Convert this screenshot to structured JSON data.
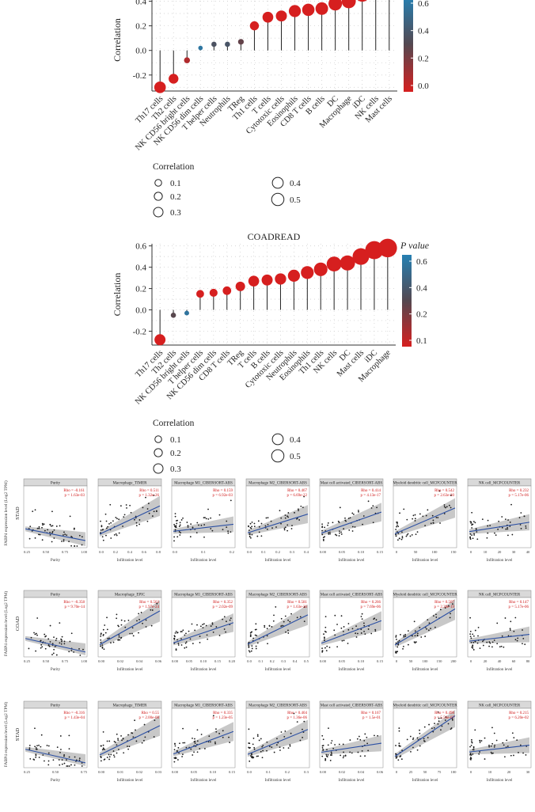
{
  "chart_data": [
    {
      "type": "scatter",
      "subtype": "lollipop",
      "title": "",
      "ylabel": "Correlation",
      "ylim": [
        -0.33,
        0.5
      ],
      "yticks": [
        -0.2,
        0.0,
        0.2,
        0.4
      ],
      "legend_pvalue": {
        "title": "P value",
        "ticks": [
          "0.6",
          "0.4",
          "0.2",
          "0.0"
        ],
        "range": [
          0.0,
          0.68
        ]
      },
      "legend_size": {
        "title": "Correlation",
        "entries": [
          "0.1",
          "0.2",
          "0.3",
          "0.4",
          "0.5"
        ]
      },
      "categories": [
        "Th17 cells",
        "Th2 cells",
        "NK CD56 bright cells",
        "NK CD56 dim cells",
        "T helper cells",
        "Neutrophils",
        "TReg",
        "Th1 cells",
        "T cells",
        "Cytotoxic cells",
        "Eosinophils",
        "CD8 T cells",
        "B cells",
        "DC",
        "Macrophage",
        "iDC",
        "NK cells",
        "Mast cells"
      ],
      "values": [
        -0.3,
        -0.23,
        -0.08,
        0.02,
        0.05,
        0.05,
        0.07,
        0.2,
        0.27,
        0.28,
        0.32,
        0.33,
        0.34,
        0.38,
        0.4,
        0.46,
        0.48,
        0.53
      ],
      "pvalues": [
        0.0,
        0.0,
        0.1,
        0.62,
        0.4,
        0.42,
        0.3,
        0.0,
        0.0,
        0.0,
        0.0,
        0.0,
        0.0,
        0.0,
        0.0,
        0.0,
        0.0,
        0.0
      ]
    },
    {
      "type": "scatter",
      "subtype": "lollipop",
      "title": "COADREAD",
      "ylabel": "Correlation",
      "ylim": [
        -0.33,
        0.62
      ],
      "yticks": [
        -0.2,
        0.0,
        0.2,
        0.4,
        0.6
      ],
      "legend_pvalue": {
        "title": "P value",
        "ticks": [
          "0.6",
          "0.4",
          "0.2",
          "0.1"
        ],
        "range": [
          0.1,
          0.68
        ]
      },
      "legend_size": {
        "title": "Correlation",
        "entries": [
          "0.1",
          "0.2",
          "0.3",
          "0.4",
          "0.5"
        ]
      },
      "categories": [
        "Th17 cells",
        "Th2 cells",
        "NK CD56 bright cells",
        "T helper cells",
        "NK CD56 dim cells",
        "CD8 T cells",
        "TReg",
        "T cells",
        "B cells",
        "Cytotoxic cells",
        "Neutrophils",
        "Eosinophils",
        "Th1 cells",
        "NK cells",
        "DC",
        "Mast cells",
        "iDC",
        "Macrophage"
      ],
      "values": [
        -0.28,
        -0.05,
        -0.03,
        0.15,
        0.16,
        0.18,
        0.22,
        0.27,
        0.28,
        0.29,
        0.32,
        0.35,
        0.38,
        0.43,
        0.44,
        0.5,
        0.56,
        0.58
      ],
      "pvalues": [
        0.1,
        0.38,
        0.62,
        0.1,
        0.1,
        0.1,
        0.1,
        0.1,
        0.1,
        0.1,
        0.1,
        0.1,
        0.1,
        0.1,
        0.1,
        0.1,
        0.1,
        0.1
      ]
    },
    {
      "type": "scatter",
      "subtype": "correlation-grid",
      "xlabel": "Infiltration level",
      "xlabel_purity": "Purity",
      "ylabels": [
        "FABP4 expression level (Log2 TPM)",
        "FABP4 expression level (Log2 TPM)",
        "FABP4 expression level (Log2 TPM)"
      ],
      "rows": [
        {
          "cohort": "STAD",
          "panels": [
            {
              "title": "Purity",
              "rho": "Rho = -0.161",
              "p": "p = 1.63e-03",
              "xticks": [
                "0.25",
                "0.50",
                "0.75",
                "1.00"
              ],
              "slope": -0.5
            },
            {
              "title": "Macrophage_TIMER",
              "rho": "Rho = 0.511",
              "p": "p = 1.32e-26",
              "xticks": [
                "0.0",
                "0.2",
                "0.4",
                "0.6",
                "0.8"
              ],
              "slope": 1.2
            },
            {
              "title": "Macrophage M1_CIBERSORT-ABS",
              "rho": "Rho = 0.159",
              "p": "p = 6.92e-03",
              "xticks": [
                "0.0",
                "0.1",
                "0.2"
              ],
              "slope": 0.3
            },
            {
              "title": "Macrophage M2_CIBERSORT-ABS",
              "rho": "Rho = 0.467",
              "p": "p = 6.69e-22",
              "xticks": [
                "0.0",
                "0.1",
                "0.2",
                "0.3",
                "0.4"
              ],
              "slope": 0.8
            },
            {
              "title": "Mast cell activated_CIBERSORT-ABS",
              "rho": "Rho = 0.414",
              "p": "p = 4.13e-17",
              "xticks": [
                "0.00",
                "0.05",
                "0.10",
                "0.15"
              ],
              "slope": 0.9
            },
            {
              "title": "Myeloid dendritic cell_MCPCOUNTER",
              "rho": "Rho = 0.542",
              "p": "p = 2.63e-30",
              "xticks": [
                "0",
                "50",
                "100",
                "150"
              ],
              "slope": 1.1
            },
            {
              "title": "NK cell_MCPCOUNTER",
              "rho": "Rho = 0.232",
              "p": "p = 5.17e-06",
              "xticks": [
                "0",
                "10",
                "20",
                "30",
                "40"
              ],
              "slope": 0.4
            }
          ]
        },
        {
          "cohort": "COAD",
          "panels": [
            {
              "title": "Purity",
              "rho": "Rho = -0.358",
              "p": "p = 9.70e-14",
              "xticks": [
                "0.25",
                "0.50",
                "0.75",
                "1.00"
              ],
              "slope": -0.6
            },
            {
              "title": "Macrophage_EPIC",
              "rho": "Rho = 0.563",
              "p": "p = 1.97e-24",
              "xticks": [
                "0.00",
                "0.02",
                "0.04",
                "0.06"
              ],
              "slope": 1.5
            },
            {
              "title": "Macrophage M1_CIBERSORT-ABS",
              "rho": "Rho = 0.352",
              "p": "p = 2.02e-09",
              "xticks": [
                "0.00",
                "0.05",
                "0.10",
                "0.15",
                "0.20"
              ],
              "slope": 0.9
            },
            {
              "title": "Macrophage M2_CIBERSORT-ABS",
              "rho": "Rho = 0.581",
              "p": "p = 1.63e-26",
              "xticks": [
                "0.0",
                "0.1",
                "0.2",
                "0.3",
                "0.4",
                "0.5"
              ],
              "slope": 1.3
            },
            {
              "title": "Mast cell activated_CIBERSORT-ABS",
              "rho": "Rho = 0.266",
              "p": "p = 7.69e-06",
              "xticks": [
                "0.00",
                "0.05",
                "0.10",
                "0.15"
              ],
              "slope": 1.0
            },
            {
              "title": "Myeloid dendritic cell_MCPCOUNTER",
              "rho": "Rho = 0.507",
              "p": "p = 2.39e-19",
              "xticks": [
                "0",
                "50",
                "100",
                "150",
                "200"
              ],
              "slope": 1.6
            },
            {
              "title": "NK cell_MCPCOUNTER",
              "rho": "Rho = 0.147",
              "p": "p = 5.17e-06",
              "xticks": [
                "0",
                "20",
                "40",
                "60",
                "80"
              ],
              "slope": 0.3
            }
          ]
        },
        {
          "cohort": "STAD",
          "panels": [
            {
              "title": "Purity",
              "rho": "Rho = -0.316",
              "p": "p = 1.43e-04",
              "xticks": [
                "0.25",
                "0.50",
                "0.75"
              ],
              "slope": -0.6
            },
            {
              "title": "Macrophage_TIMER",
              "rho": "Rho = 0.55",
              "p": "p = 2.00e-08",
              "xticks": [
                "0.00",
                "0.01",
                "0.02",
                "0.03"
              ],
              "slope": 1.3
            },
            {
              "title": "Macrophage M1_CIBERSORT-ABS",
              "rho": "Rho = 0.335",
              "p": "p = 1.23e-05",
              "xticks": [
                "0.00",
                "0.05",
                "0.10",
                "0.15"
              ],
              "slope": 1.0
            },
            {
              "title": "Macrophage M2_CIBERSORT-ABS",
              "rho": "Rho = 0.404",
              "p": "p = 1.36e-06",
              "xticks": [
                "0.0",
                "0.1",
                "0.2",
                "0.3"
              ],
              "slope": 1.1
            },
            {
              "title": "Mast cell activated_CIBERSORT-ABS",
              "rho": "Rho = 0.167",
              "p": "p = 1.5e-01",
              "xticks": [
                "0.00",
                "0.02",
                "0.04",
                "0.06"
              ],
              "slope": 0.4
            },
            {
              "title": "Myeloid dendritic cell_MCPCOUNTER",
              "rho": "Rho = 0.498",
              "p": "p = 5.56e-07",
              "xticks": [
                "0",
                "25",
                "50",
                "75",
                "100"
              ],
              "slope": 1.8
            },
            {
              "title": "NK cell_MCPCOUNTER",
              "rho": "Rho = 0.215",
              "p": "p = 6.20e-02",
              "xticks": [
                "0",
                "10",
                "20",
                "30"
              ],
              "slope": 0.3
            }
          ]
        }
      ]
    }
  ]
}
